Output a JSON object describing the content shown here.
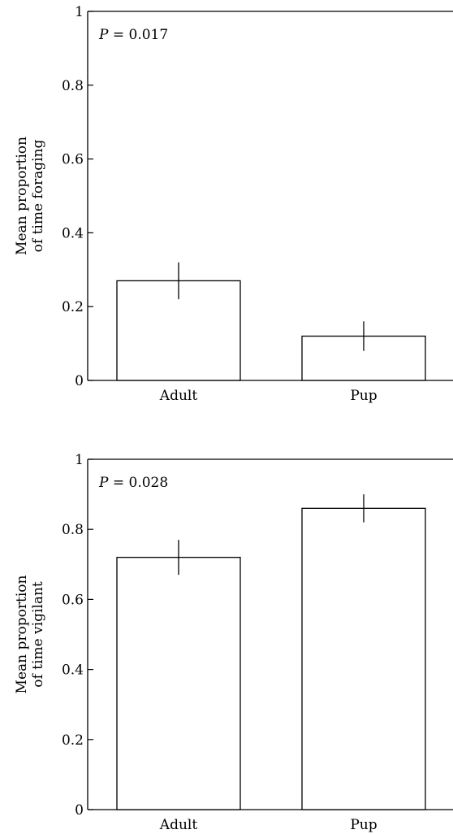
{
  "chart_data": [
    {
      "type": "bar",
      "annotation": {
        "p_symbol": "P",
        "p_text": " = 0.017"
      },
      "ylabel_lines": [
        "Mean proportion",
        "of time foraging"
      ],
      "categories": [
        "Adult",
        "Pup"
      ],
      "values": [
        0.27,
        0.12
      ],
      "error_low": [
        0.22,
        0.08
      ],
      "error_high": [
        0.32,
        0.16
      ],
      "ylim": [
        0,
        1
      ],
      "ticks": [
        {
          "value": 0,
          "label": "0"
        },
        {
          "value": 0.2,
          "label": "0.2"
        },
        {
          "value": 0.4,
          "label": "0.4"
        },
        {
          "value": 0.6,
          "label": "0.6"
        },
        {
          "value": 0.8,
          "label": "0.8"
        },
        {
          "value": 1,
          "label": "1"
        }
      ],
      "grid": false
    },
    {
      "type": "bar",
      "annotation": {
        "p_symbol": "P",
        "p_text": " = 0.028"
      },
      "ylabel_lines": [
        "Mean proportion",
        "of time vigilant"
      ],
      "categories": [
        "Adult",
        "Pup"
      ],
      "values": [
        0.72,
        0.86
      ],
      "error_low": [
        0.67,
        0.82
      ],
      "error_high": [
        0.77,
        0.9
      ],
      "ylim": [
        0,
        1
      ],
      "ticks": [
        {
          "value": 0,
          "label": "0"
        },
        {
          "value": 0.2,
          "label": "0.2"
        },
        {
          "value": 0.4,
          "label": "0.4"
        },
        {
          "value": 0.6,
          "label": "0.6"
        },
        {
          "value": 0.8,
          "label": "0.8"
        },
        {
          "value": 1,
          "label": "1"
        }
      ],
      "grid": false
    }
  ]
}
